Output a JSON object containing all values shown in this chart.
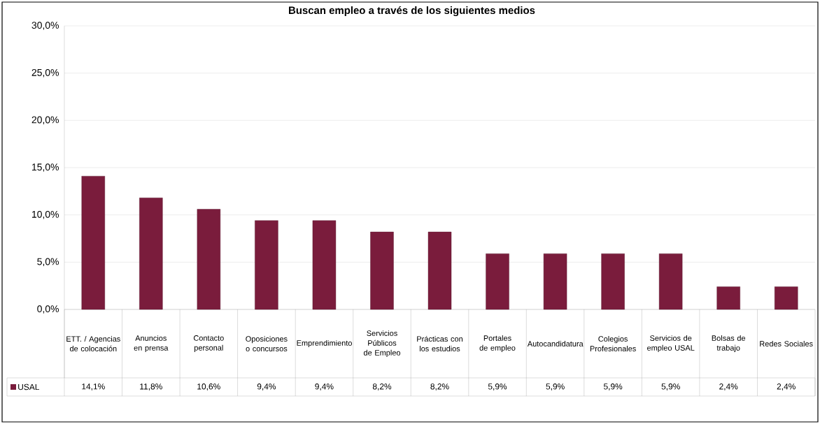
{
  "chart_data": {
    "type": "bar",
    "title": "Buscan empleo a través de los siguientes medios",
    "categories": [
      "ETT. / Agencias de colocación",
      "Anuncios en prensa",
      "Contacto personal",
      "Oposiciones o concursos",
      "Emprendimiento",
      "Servicios Públicos de Empleo",
      "Prácticas con los estudios",
      "Portales de empleo",
      "Autocandidatura",
      "Colegios Profesionales",
      "Servicios de empleo USAL",
      "Bolsas de trabajo",
      "Redes Sociales"
    ],
    "series": [
      {
        "name": "USAL",
        "color": "#7a1c3c",
        "values": [
          14.1,
          11.8,
          10.6,
          9.4,
          9.4,
          8.2,
          8.2,
          5.9,
          5.9,
          5.9,
          5.9,
          2.4,
          2.4
        ],
        "value_labels": [
          "14,1%",
          "11,8%",
          "10,6%",
          "9,4%",
          "9,4%",
          "8,2%",
          "8,2%",
          "5,9%",
          "5,9%",
          "5,9%",
          "5,9%",
          "2,4%",
          "2,4%"
        ]
      }
    ],
    "ylim": [
      0,
      30
    ],
    "yticks": [
      {
        "value": 0,
        "label": "0,0%"
      },
      {
        "value": 5,
        "label": "5,0%"
      },
      {
        "value": 10,
        "label": "10,0%"
      },
      {
        "value": 15,
        "label": "15,0%"
      },
      {
        "value": 20,
        "label": "20,0%"
      },
      {
        "value": 25,
        "label": "25,0%"
      },
      {
        "value": 30,
        "label": "30,0%"
      }
    ],
    "grid": "y",
    "legend": "bottom"
  }
}
